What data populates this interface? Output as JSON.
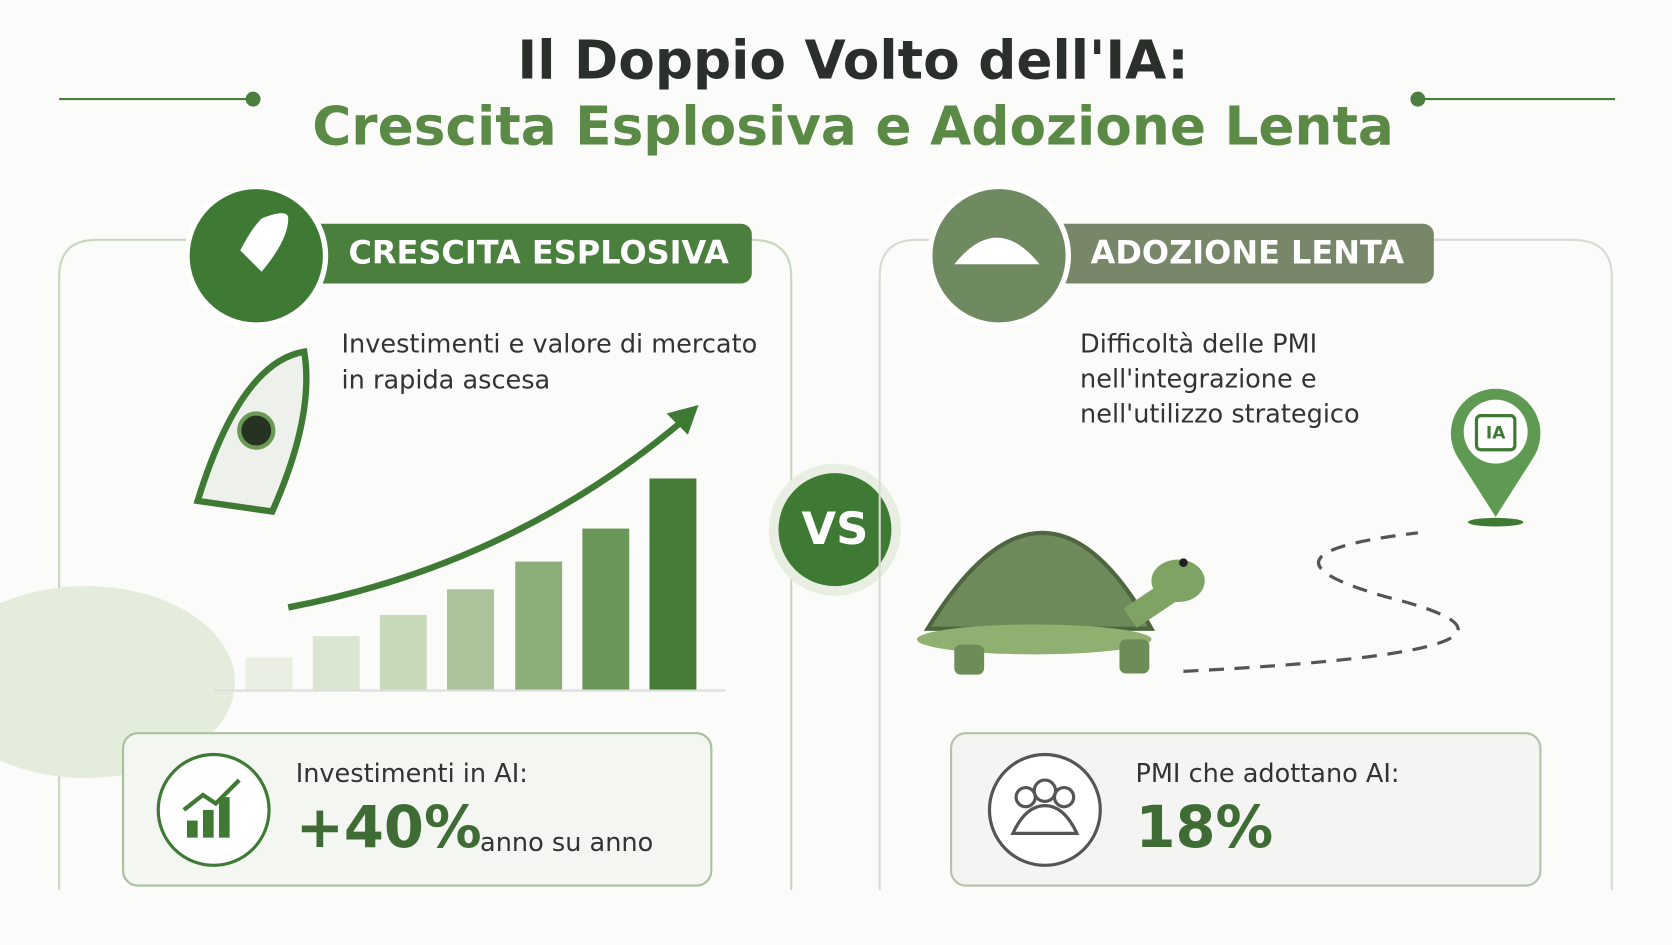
{
  "header": {
    "title_line1": "Il Doppio Volto dell'IA:",
    "title_line2": "Crescita Esplosiva e Adozione Lenta"
  },
  "left_panel": {
    "label": "CRESCITA ESPLOSIVA",
    "description": [
      "Investimenti e valore di mercato",
      "in rapida ascesa"
    ],
    "stat": {
      "label": "Investimenti in AI:",
      "value": "+40%",
      "suffix": "anno su anno"
    }
  },
  "versus": "VS",
  "right_panel": {
    "label": "ADOZIONE LENTA",
    "description": [
      "Difficoltà delle PMI",
      "nell'integrazione e",
      "nell'utilizzo strategico"
    ],
    "pin_label": "IA",
    "stat": {
      "label": "PMI che adottano AI:",
      "value": "18%"
    }
  }
}
